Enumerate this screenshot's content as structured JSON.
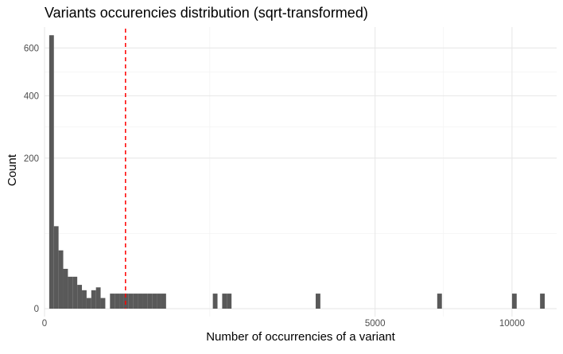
{
  "chart_data": {
    "type": "histogram",
    "title": "Variants occurencies distribution (sqrt-transformed)",
    "xlabel": "Number of occurrencies of a variant",
    "ylabel": "Count",
    "x_scale": "sqrt",
    "y_scale": "sqrt",
    "xlim": [
      0,
      12000
    ],
    "ylim": [
      0,
      700
    ],
    "x_ticks": [
      0,
      5000,
      10000
    ],
    "x_tick_labels": [
      "0",
      "5000",
      "10000"
    ],
    "y_ticks": [
      0,
      200,
      400,
      600
    ],
    "y_tick_labels": [
      "0",
      "200",
      "400",
      "600"
    ],
    "bin_width_sqrt_units": 1.0,
    "bins": [
      {
        "sqrt_x": 1.5,
        "count": 660
      },
      {
        "sqrt_x": 2.5,
        "count": 60
      },
      {
        "sqrt_x": 3.5,
        "count": 30
      },
      {
        "sqrt_x": 4.5,
        "count": 14
      },
      {
        "sqrt_x": 5.5,
        "count": 9
      },
      {
        "sqrt_x": 6.5,
        "count": 9
      },
      {
        "sqrt_x": 7.5,
        "count": 5
      },
      {
        "sqrt_x": 8.5,
        "count": 3
      },
      {
        "sqrt_x": 9.5,
        "count": 1
      },
      {
        "sqrt_x": 10.5,
        "count": 3
      },
      {
        "sqrt_x": 11.5,
        "count": 4
      },
      {
        "sqrt_x": 12.5,
        "count": 1
      },
      {
        "sqrt_x": 14.5,
        "count": 2
      },
      {
        "sqrt_x": 15.5,
        "count": 2
      },
      {
        "sqrt_x": 16.5,
        "count": 2
      },
      {
        "sqrt_x": 17.5,
        "count": 2
      },
      {
        "sqrt_x": 18.5,
        "count": 2
      },
      {
        "sqrt_x": 19.5,
        "count": 2
      },
      {
        "sqrt_x": 20.5,
        "count": 2
      },
      {
        "sqrt_x": 21.5,
        "count": 2
      },
      {
        "sqrt_x": 22.5,
        "count": 2
      },
      {
        "sqrt_x": 23.5,
        "count": 2
      },
      {
        "sqrt_x": 24.5,
        "count": 2
      },
      {
        "sqrt_x": 25.5,
        "count": 2
      },
      {
        "sqrt_x": 36.5,
        "count": 2
      },
      {
        "sqrt_x": 38.5,
        "count": 2
      },
      {
        "sqrt_x": 39.5,
        "count": 2
      },
      {
        "sqrt_x": 58.5,
        "count": 2
      },
      {
        "sqrt_x": 84.5,
        "count": 2
      },
      {
        "sqrt_x": 100.5,
        "count": 2
      },
      {
        "sqrt_x": 106.5,
        "count": 2
      }
    ],
    "reference_line": {
      "x": 300,
      "style": "dashed",
      "color": "#ff0000"
    },
    "bar_color": "#595959",
    "grid": true,
    "legend": "none"
  }
}
